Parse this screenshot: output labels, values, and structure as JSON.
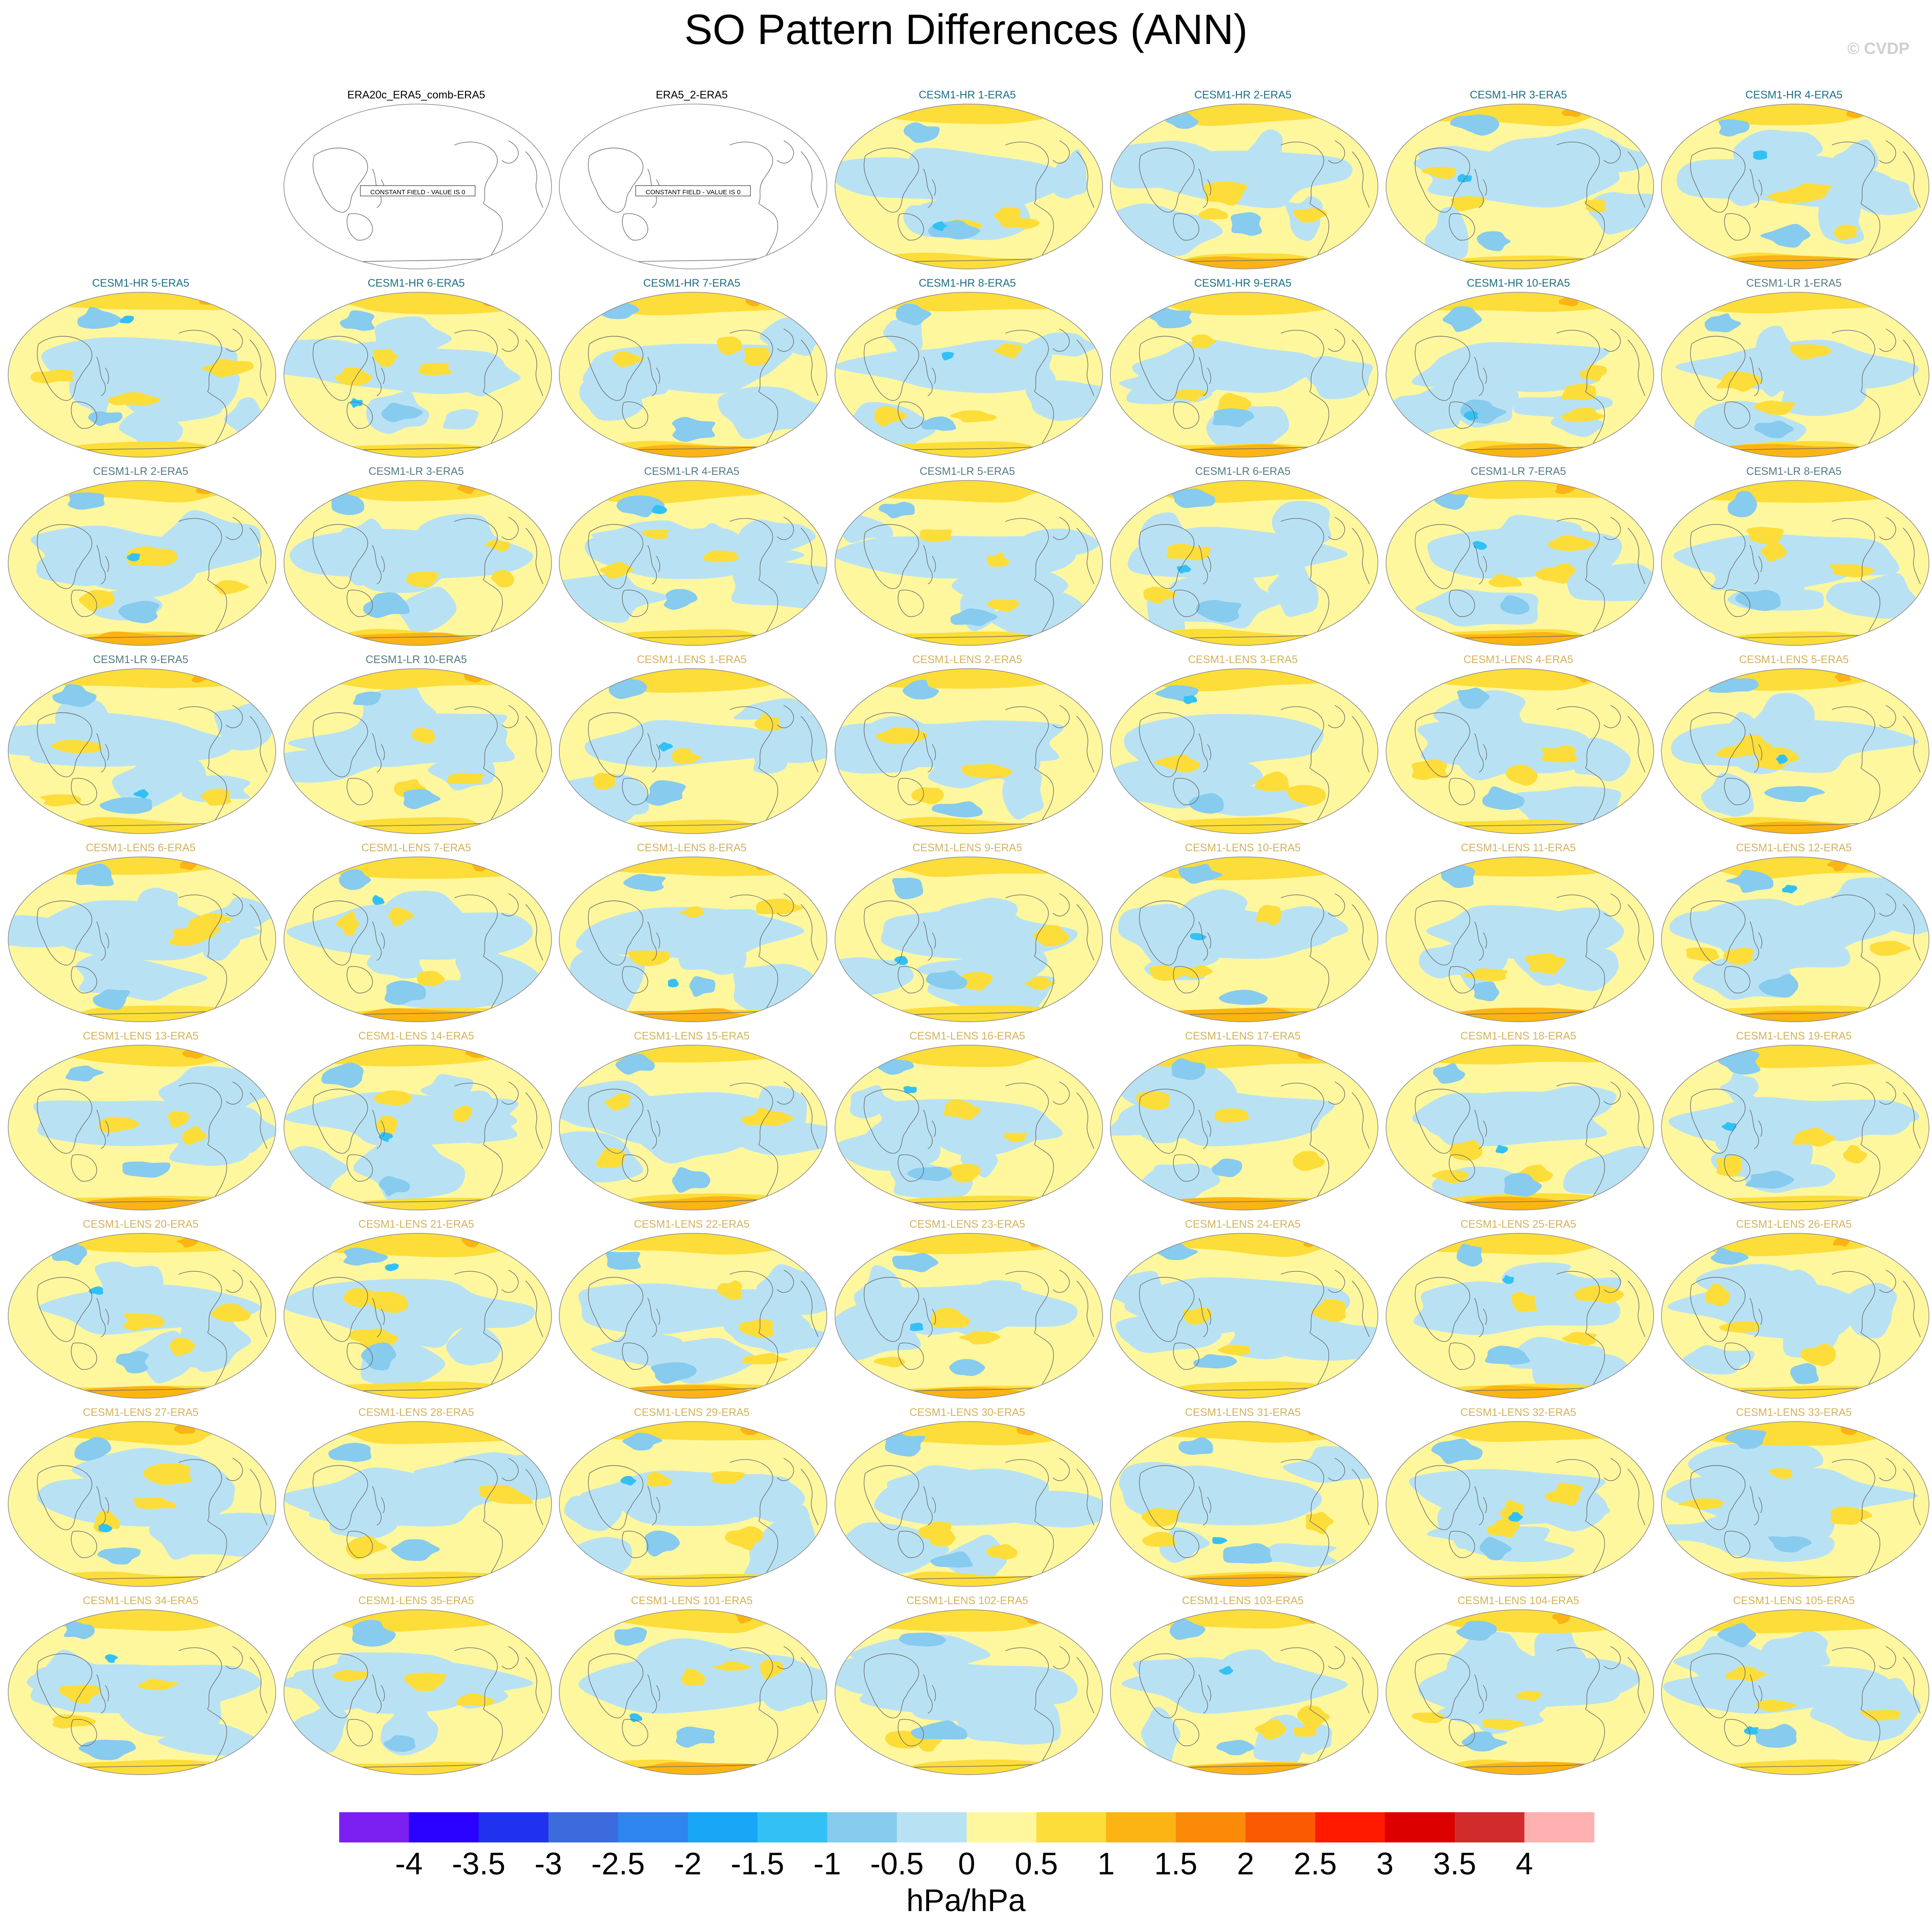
{
  "title": "SO Pattern Differences (ANN)",
  "copyright": "© CVDP",
  "chart_data": {
    "type": "heatmap",
    "title": "SO Pattern Differences (ANN)",
    "projection": "global map panels, Pacific-centered",
    "grid_rows": 9,
    "grid_cols": 7,
    "colorbar": {
      "unit": "hPa/hPa",
      "levels": [
        -4,
        -3.5,
        -3,
        -2.5,
        -2,
        -1.5,
        -1,
        -0.5,
        0,
        0.5,
        1,
        1.5,
        2,
        2.5,
        3,
        3.5,
        4
      ],
      "tick_labels": [
        "-4",
        "-3.5",
        "-3",
        "-2.5",
        "-2",
        "-1.5",
        "-1",
        "-0.5",
        "0",
        "0.5",
        "1",
        "1.5",
        "2",
        "2.5",
        "3",
        "3.5",
        "4"
      ],
      "colors": [
        "#7b20f0",
        "#2a00ff",
        "#2032ee",
        "#3c6bde",
        "#2e86ee",
        "#16a6f5",
        "#33c1f5",
        "#87cbee",
        "#b8e2f4",
        "#fff79e",
        "#fddd3a",
        "#fbb414",
        "#fb8a08",
        "#fb5a03",
        "#ff1a00",
        "#dd0000",
        "#d12b2b",
        "#ffb0b0"
      ]
    },
    "title_colors": {
      "obs": "#000000",
      "CESM1-HR": "#1f6e86",
      "CESM1-LR": "#557b82",
      "CESM1-LENS": "#d4b25e"
    },
    "panels": [
      {
        "row": 0,
        "col": 0,
        "label": "",
        "empty": true
      },
      {
        "row": 0,
        "col": 1,
        "label": "ERA20c_ERA5_comb-ERA5",
        "group": "obs",
        "constant_field": true,
        "note": "CONSTANT FIELD - VALUE IS 0"
      },
      {
        "row": 0,
        "col": 2,
        "label": "ERA5_2-ERA5",
        "group": "obs",
        "constant_field": true,
        "note": "CONSTANT FIELD - VALUE IS 0"
      },
      {
        "row": 0,
        "col": 3,
        "label": "CESM1-HR 1-ERA5",
        "group": "CESM1-HR"
      },
      {
        "row": 0,
        "col": 4,
        "label": "CESM1-HR 2-ERA5",
        "group": "CESM1-HR"
      },
      {
        "row": 0,
        "col": 5,
        "label": "CESM1-HR 3-ERA5",
        "group": "CESM1-HR"
      },
      {
        "row": 0,
        "col": 6,
        "label": "CESM1-HR 4-ERA5",
        "group": "CESM1-HR"
      },
      {
        "row": 1,
        "col": 0,
        "label": "CESM1-HR 5-ERA5",
        "group": "CESM1-HR"
      },
      {
        "row": 1,
        "col": 1,
        "label": "CESM1-HR 6-ERA5",
        "group": "CESM1-HR"
      },
      {
        "row": 1,
        "col": 2,
        "label": "CESM1-HR 7-ERA5",
        "group": "CESM1-HR"
      },
      {
        "row": 1,
        "col": 3,
        "label": "CESM1-HR 8-ERA5",
        "group": "CESM1-HR"
      },
      {
        "row": 1,
        "col": 4,
        "label": "CESM1-HR 9-ERA5",
        "group": "CESM1-HR"
      },
      {
        "row": 1,
        "col": 5,
        "label": "CESM1-HR 10-ERA5",
        "group": "CESM1-HR"
      },
      {
        "row": 1,
        "col": 6,
        "label": "CESM1-LR 1-ERA5",
        "group": "CESM1-LR"
      },
      {
        "row": 2,
        "col": 0,
        "label": "CESM1-LR 2-ERA5",
        "group": "CESM1-LR"
      },
      {
        "row": 2,
        "col": 1,
        "label": "CESM1-LR 3-ERA5",
        "group": "CESM1-LR"
      },
      {
        "row": 2,
        "col": 2,
        "label": "CESM1-LR 4-ERA5",
        "group": "CESM1-LR"
      },
      {
        "row": 2,
        "col": 3,
        "label": "CESM1-LR 5-ERA5",
        "group": "CESM1-LR"
      },
      {
        "row": 2,
        "col": 4,
        "label": "CESM1-LR 6-ERA5",
        "group": "CESM1-LR"
      },
      {
        "row": 2,
        "col": 5,
        "label": "CESM1-LR 7-ERA5",
        "group": "CESM1-LR"
      },
      {
        "row": 2,
        "col": 6,
        "label": "CESM1-LR 8-ERA5",
        "group": "CESM1-LR"
      },
      {
        "row": 3,
        "col": 0,
        "label": "CESM1-LR 9-ERA5",
        "group": "CESM1-LR"
      },
      {
        "row": 3,
        "col": 1,
        "label": "CESM1-LR 10-ERA5",
        "group": "CESM1-LR"
      },
      {
        "row": 3,
        "col": 2,
        "label": "CESM1-LENS 1-ERA5",
        "group": "CESM1-LENS"
      },
      {
        "row": 3,
        "col": 3,
        "label": "CESM1-LENS 2-ERA5",
        "group": "CESM1-LENS"
      },
      {
        "row": 3,
        "col": 4,
        "label": "CESM1-LENS 3-ERA5",
        "group": "CESM1-LENS"
      },
      {
        "row": 3,
        "col": 5,
        "label": "CESM1-LENS 4-ERA5",
        "group": "CESM1-LENS"
      },
      {
        "row": 3,
        "col": 6,
        "label": "CESM1-LENS 5-ERA5",
        "group": "CESM1-LENS"
      },
      {
        "row": 4,
        "col": 0,
        "label": "CESM1-LENS 6-ERA5",
        "group": "CESM1-LENS"
      },
      {
        "row": 4,
        "col": 1,
        "label": "CESM1-LENS 7-ERA5",
        "group": "CESM1-LENS"
      },
      {
        "row": 4,
        "col": 2,
        "label": "CESM1-LENS 8-ERA5",
        "group": "CESM1-LENS"
      },
      {
        "row": 4,
        "col": 3,
        "label": "CESM1-LENS 9-ERA5",
        "group": "CESM1-LENS"
      },
      {
        "row": 4,
        "col": 4,
        "label": "CESM1-LENS 10-ERA5",
        "group": "CESM1-LENS"
      },
      {
        "row": 4,
        "col": 5,
        "label": "CESM1-LENS 11-ERA5",
        "group": "CESM1-LENS"
      },
      {
        "row": 4,
        "col": 6,
        "label": "CESM1-LENS 12-ERA5",
        "group": "CESM1-LENS"
      },
      {
        "row": 5,
        "col": 0,
        "label": "CESM1-LENS 13-ERA5",
        "group": "CESM1-LENS"
      },
      {
        "row": 5,
        "col": 1,
        "label": "CESM1-LENS 14-ERA5",
        "group": "CESM1-LENS"
      },
      {
        "row": 5,
        "col": 2,
        "label": "CESM1-LENS 15-ERA5",
        "group": "CESM1-LENS"
      },
      {
        "row": 5,
        "col": 3,
        "label": "CESM1-LENS 16-ERA5",
        "group": "CESM1-LENS"
      },
      {
        "row": 5,
        "col": 4,
        "label": "CESM1-LENS 17-ERA5",
        "group": "CESM1-LENS"
      },
      {
        "row": 5,
        "col": 5,
        "label": "CESM1-LENS 18-ERA5",
        "group": "CESM1-LENS"
      },
      {
        "row": 5,
        "col": 6,
        "label": "CESM1-LENS 19-ERA5",
        "group": "CESM1-LENS"
      },
      {
        "row": 6,
        "col": 0,
        "label": "CESM1-LENS 20-ERA5",
        "group": "CESM1-LENS"
      },
      {
        "row": 6,
        "col": 1,
        "label": "CESM1-LENS 21-ERA5",
        "group": "CESM1-LENS"
      },
      {
        "row": 6,
        "col": 2,
        "label": "CESM1-LENS 22-ERA5",
        "group": "CESM1-LENS"
      },
      {
        "row": 6,
        "col": 3,
        "label": "CESM1-LENS 23-ERA5",
        "group": "CESM1-LENS"
      },
      {
        "row": 6,
        "col": 4,
        "label": "CESM1-LENS 24-ERA5",
        "group": "CESM1-LENS"
      },
      {
        "row": 6,
        "col": 5,
        "label": "CESM1-LENS 25-ERA5",
        "group": "CESM1-LENS"
      },
      {
        "row": 6,
        "col": 6,
        "label": "CESM1-LENS 26-ERA5",
        "group": "CESM1-LENS"
      },
      {
        "row": 7,
        "col": 0,
        "label": "CESM1-LENS 27-ERA5",
        "group": "CESM1-LENS"
      },
      {
        "row": 7,
        "col": 1,
        "label": "CESM1-LENS 28-ERA5",
        "group": "CESM1-LENS"
      },
      {
        "row": 7,
        "col": 2,
        "label": "CESM1-LENS 29-ERA5",
        "group": "CESM1-LENS"
      },
      {
        "row": 7,
        "col": 3,
        "label": "CESM1-LENS 30-ERA5",
        "group": "CESM1-LENS"
      },
      {
        "row": 7,
        "col": 4,
        "label": "CESM1-LENS 31-ERA5",
        "group": "CESM1-LENS"
      },
      {
        "row": 7,
        "col": 5,
        "label": "CESM1-LENS 32-ERA5",
        "group": "CESM1-LENS"
      },
      {
        "row": 7,
        "col": 6,
        "label": "CESM1-LENS 33-ERA5",
        "group": "CESM1-LENS"
      },
      {
        "row": 8,
        "col": 0,
        "label": "CESM1-LENS 34-ERA5",
        "group": "CESM1-LENS"
      },
      {
        "row": 8,
        "col": 1,
        "label": "CESM1-LENS 35-ERA5",
        "group": "CESM1-LENS"
      },
      {
        "row": 8,
        "col": 2,
        "label": "CESM1-LENS 101-ERA5",
        "group": "CESM1-LENS"
      },
      {
        "row": 8,
        "col": 3,
        "label": "CESM1-LENS 102-ERA5",
        "group": "CESM1-LENS"
      },
      {
        "row": 8,
        "col": 4,
        "label": "CESM1-LENS 103-ERA5",
        "group": "CESM1-LENS"
      },
      {
        "row": 8,
        "col": 5,
        "label": "CESM1-LENS 104-ERA5",
        "group": "CESM1-LENS"
      },
      {
        "row": 8,
        "col": 6,
        "label": "CESM1-LENS 105-ERA5",
        "group": "CESM1-LENS"
      }
    ]
  }
}
